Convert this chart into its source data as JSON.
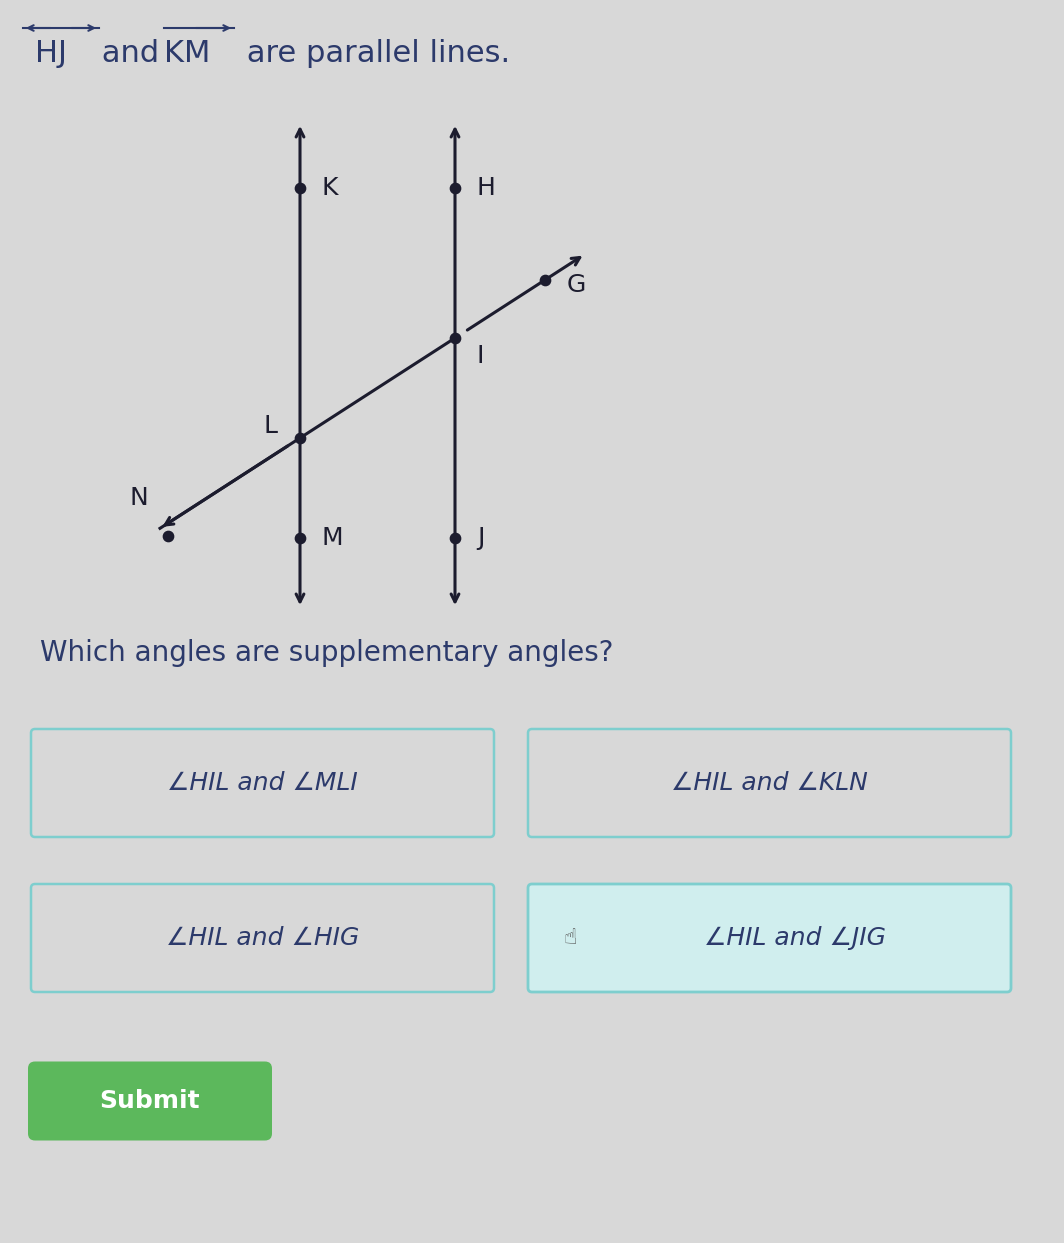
{
  "bg_color": "#d8d8d8",
  "title_color": "#2c3a6b",
  "question_text": "Which angles are supplementary angles?",
  "answer_options": [
    "∠HIL and ∠MLI",
    "∠HIL and ∠KLN",
    "∠HIL and ∠HIG",
    "∠HIL and ∠JIG"
  ],
  "selected_option": 3,
  "submit_label": "Submit",
  "submit_color": "#5cb85c",
  "line_color": "#1c1c2e",
  "dot_color": "#1c1c2e",
  "label_color": "#1c1c2e",
  "answer_border_color": "#7ecece",
  "answer_text_color": "#2c3a6b",
  "answer_font_size": 18,
  "question_font_size": 20,
  "title_font_size": 22,
  "label_font_size": 18
}
